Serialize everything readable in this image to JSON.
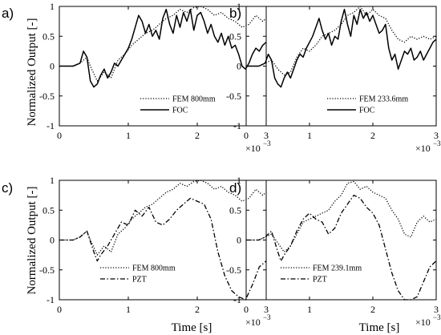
{
  "figure": {
    "ylabel": "Normalized  Output  [-]",
    "xlabel": "Time [s]",
    "x_multiplier_base": "×10",
    "x_multiplier_exp": "−3"
  },
  "chart_data": [
    {
      "type": "line",
      "panel_label": "a)",
      "xlim": [
        0,
        3
      ],
      "ylim": [
        -1,
        1
      ],
      "x_ticks": [
        "0",
        "1",
        "2",
        "3"
      ],
      "y_ticks": [
        "-1",
        "-0.5",
        "0",
        "0.5",
        "1"
      ],
      "series": [
        {
          "name": "FEM 800mm",
          "style": "dotted",
          "x": [
            0,
            0.2,
            0.3,
            0.4,
            0.45,
            0.55,
            0.65,
            0.75,
            0.85,
            0.95,
            1.05,
            1.15,
            1.25,
            1.35,
            1.45,
            1.55,
            1.65,
            1.75,
            1.85,
            1.95,
            2.05,
            2.15,
            2.25,
            2.35,
            2.45,
            2.55,
            2.65,
            2.75,
            2.85,
            2.95,
            3.0
          ],
          "y": [
            0,
            0,
            0.05,
            0.15,
            0.0,
            -0.25,
            -0.1,
            -0.2,
            0.1,
            0.2,
            0.35,
            0.45,
            0.55,
            0.6,
            0.7,
            0.8,
            0.85,
            0.95,
            0.9,
            0.98,
            1.0,
            0.95,
            0.85,
            0.9,
            0.8,
            0.75,
            0.65,
            0.7,
            0.85,
            0.75,
            0.8
          ]
        },
        {
          "name": "FOC",
          "style": "solid",
          "x": [
            0,
            0.2,
            0.3,
            0.35,
            0.4,
            0.45,
            0.5,
            0.55,
            0.6,
            0.65,
            0.7,
            0.75,
            0.8,
            0.85,
            0.9,
            0.95,
            1.0,
            1.05,
            1.1,
            1.15,
            1.2,
            1.25,
            1.3,
            1.35,
            1.4,
            1.45,
            1.5,
            1.55,
            1.6,
            1.65,
            1.7,
            1.75,
            1.8,
            1.85,
            1.9,
            1.95,
            2.0,
            2.05,
            2.1,
            2.15,
            2.2,
            2.25,
            2.3,
            2.35,
            2.4,
            2.45,
            2.5,
            2.55,
            2.6,
            2.65,
            2.7,
            2.75,
            2.8,
            2.85,
            2.9,
            2.95,
            3.0
          ],
          "y": [
            0,
            0,
            0.05,
            0.25,
            0.15,
            -0.25,
            -0.35,
            -0.3,
            -0.15,
            -0.05,
            -0.2,
            -0.1,
            0.05,
            0.0,
            0.1,
            0.2,
            0.3,
            0.45,
            0.65,
            0.85,
            0.75,
            0.55,
            0.7,
            0.5,
            0.6,
            0.45,
            0.8,
            0.95,
            0.7,
            0.55,
            0.85,
            0.65,
            0.9,
            0.75,
            0.95,
            0.6,
            0.85,
            0.9,
            0.75,
            0.55,
            0.7,
            0.5,
            0.4,
            0.55,
            0.35,
            0.5,
            0.3,
            0.35,
            0.2,
            0.0,
            -0.05,
            0.05,
            0.2,
            0.3,
            0.25,
            0.35,
            0.4
          ]
        }
      ]
    },
    {
      "type": "line",
      "panel_label": "b)",
      "xlim": [
        0,
        3
      ],
      "ylim": [
        -1,
        1
      ],
      "x_ticks": [
        "0",
        "1",
        "2",
        "3"
      ],
      "y_ticks": [
        "-1",
        "-0.5",
        "0",
        "0.5",
        "1"
      ],
      "series": [
        {
          "name": "FEM 233.6mm",
          "style": "dotted",
          "x": [
            0,
            0.2,
            0.3,
            0.4,
            0.5,
            0.6,
            0.7,
            0.8,
            0.9,
            1.0,
            1.1,
            1.2,
            1.3,
            1.4,
            1.5,
            1.6,
            1.7,
            1.8,
            1.9,
            2.0,
            2.1,
            2.2,
            2.3,
            2.4,
            2.5,
            2.6,
            2.7,
            2.8,
            2.9,
            3.0
          ],
          "y": [
            0,
            0,
            0.05,
            0.1,
            -0.05,
            -0.15,
            -0.1,
            0.15,
            0.3,
            0.25,
            0.35,
            0.5,
            0.55,
            0.6,
            0.7,
            0.85,
            0.9,
            1.0,
            0.85,
            0.95,
            0.85,
            0.8,
            0.6,
            0.45,
            0.4,
            0.5,
            0.45,
            0.5,
            0.45,
            0.5
          ]
        },
        {
          "name": "FOC",
          "style": "solid",
          "x": [
            0,
            0.2,
            0.3,
            0.35,
            0.4,
            0.45,
            0.5,
            0.55,
            0.6,
            0.65,
            0.7,
            0.75,
            0.8,
            0.85,
            0.9,
            0.95,
            1.0,
            1.05,
            1.1,
            1.15,
            1.2,
            1.25,
            1.3,
            1.35,
            1.4,
            1.45,
            1.5,
            1.55,
            1.6,
            1.65,
            1.7,
            1.75,
            1.8,
            1.85,
            1.9,
            1.95,
            2.0,
            2.05,
            2.1,
            2.15,
            2.2,
            2.25,
            2.3,
            2.35,
            2.4,
            2.45,
            2.5,
            2.55,
            2.6,
            2.65,
            2.7,
            2.75,
            2.8,
            2.85,
            2.9,
            2.95,
            3.0
          ],
          "y": [
            0,
            0,
            0.05,
            0.2,
            0.1,
            -0.2,
            -0.3,
            -0.35,
            -0.2,
            -0.1,
            -0.2,
            -0.05,
            0.1,
            0.2,
            0.15,
            0.3,
            0.4,
            0.5,
            0.65,
            0.8,
            0.6,
            0.45,
            0.55,
            0.35,
            0.5,
            0.45,
            0.75,
            0.95,
            0.7,
            0.5,
            0.85,
            0.7,
            0.95,
            0.8,
            0.9,
            0.75,
            0.85,
            0.7,
            0.55,
            0.6,
            0.7,
            0.3,
            0.1,
            0.2,
            -0.05,
            0.1,
            0.25,
            0.2,
            0.3,
            0.1,
            0.15,
            0.25,
            0.1,
            0.2,
            0.3,
            0.4,
            0.45
          ]
        }
      ]
    },
    {
      "type": "line",
      "panel_label": "c)",
      "xlim": [
        0,
        3
      ],
      "ylim": [
        -1,
        1
      ],
      "x_ticks": [
        "0",
        "1",
        "2",
        "3"
      ],
      "y_ticks": [
        "-1",
        "-0.5",
        "0",
        "0.5",
        "1"
      ],
      "series": [
        {
          "name": "FEM 800mm",
          "style": "dotted",
          "x": [
            0,
            0.2,
            0.3,
            0.4,
            0.45,
            0.55,
            0.65,
            0.75,
            0.85,
            0.95,
            1.05,
            1.15,
            1.25,
            1.35,
            1.45,
            1.55,
            1.65,
            1.75,
            1.85,
            1.95,
            2.05,
            2.15,
            2.25,
            2.35,
            2.45,
            2.55,
            2.65,
            2.75,
            2.85,
            2.95,
            3.0
          ],
          "y": [
            0,
            0,
            0.05,
            0.15,
            0.0,
            -0.25,
            -0.1,
            -0.2,
            0.1,
            0.2,
            0.35,
            0.45,
            0.55,
            0.6,
            0.7,
            0.8,
            0.85,
            0.95,
            0.9,
            0.98,
            1.0,
            0.95,
            0.85,
            0.9,
            0.8,
            0.75,
            0.65,
            0.7,
            0.85,
            0.75,
            0.8
          ]
        },
        {
          "name": "PZT",
          "style": "dashdot",
          "x": [
            0,
            0.2,
            0.3,
            0.4,
            0.5,
            0.55,
            0.6,
            0.7,
            0.8,
            0.9,
            1.0,
            1.1,
            1.2,
            1.3,
            1.4,
            1.5,
            1.6,
            1.7,
            1.8,
            1.9,
            2.0,
            2.1,
            2.2,
            2.3,
            2.4,
            2.5,
            2.6,
            2.7,
            2.8,
            2.9,
            3.0
          ],
          "y": [
            0,
            0,
            0.05,
            0.15,
            -0.2,
            -0.35,
            -0.25,
            -0.1,
            0.1,
            0.3,
            0.25,
            0.5,
            0.4,
            0.55,
            0.3,
            0.25,
            0.35,
            0.5,
            0.6,
            0.7,
            0.65,
            0.6,
            0.35,
            -0.2,
            -0.6,
            -0.85,
            -0.95,
            -1.0,
            -0.75,
            -0.45,
            -0.35
          ]
        }
      ]
    },
    {
      "type": "line",
      "panel_label": "d)",
      "xlim": [
        0,
        3
      ],
      "ylim": [
        -1,
        1
      ],
      "x_ticks": [
        "0",
        "1",
        "2",
        "3"
      ],
      "y_ticks": [
        "-1",
        "-0.5",
        "0",
        "0.5",
        "1"
      ],
      "series": [
        {
          "name": "FEM 239.1mm",
          "style": "dotted",
          "x": [
            0,
            0.2,
            0.3,
            0.4,
            0.5,
            0.6,
            0.7,
            0.8,
            0.9,
            1.0,
            1.1,
            1.2,
            1.3,
            1.4,
            1.5,
            1.6,
            1.7,
            1.8,
            1.9,
            2.0,
            2.1,
            2.2,
            2.3,
            2.4,
            2.5,
            2.6,
            2.7,
            2.8,
            2.9,
            3.0
          ],
          "y": [
            0,
            0,
            0.05,
            0.1,
            -0.05,
            -0.2,
            -0.1,
            0.1,
            0.3,
            0.35,
            0.4,
            0.45,
            0.5,
            0.65,
            0.75,
            0.95,
            0.98,
            0.85,
            0.9,
            0.8,
            0.75,
            0.7,
            0.5,
            0.35,
            0.1,
            0.05,
            0.3,
            0.4,
            0.3,
            0.35
          ]
        },
        {
          "name": "PZT",
          "style": "dashdot",
          "x": [
            0,
            0.2,
            0.3,
            0.4,
            0.5,
            0.55,
            0.6,
            0.7,
            0.8,
            0.9,
            1.0,
            1.1,
            1.2,
            1.3,
            1.4,
            1.5,
            1.6,
            1.7,
            1.8,
            1.9,
            2.0,
            2.1,
            2.2,
            2.3,
            2.4,
            2.5,
            2.6,
            2.7,
            2.8,
            2.9,
            3.0
          ],
          "y": [
            0,
            0,
            0.05,
            0.15,
            -0.2,
            -0.35,
            -0.25,
            -0.1,
            0.15,
            0.35,
            0.45,
            0.35,
            0.3,
            0.1,
            0.2,
            0.45,
            0.6,
            0.75,
            0.7,
            0.55,
            0.45,
            0.25,
            -0.15,
            -0.55,
            -0.85,
            -1.0,
            -1.0,
            -0.95,
            -0.7,
            -0.45,
            -0.35
          ]
        }
      ]
    }
  ]
}
